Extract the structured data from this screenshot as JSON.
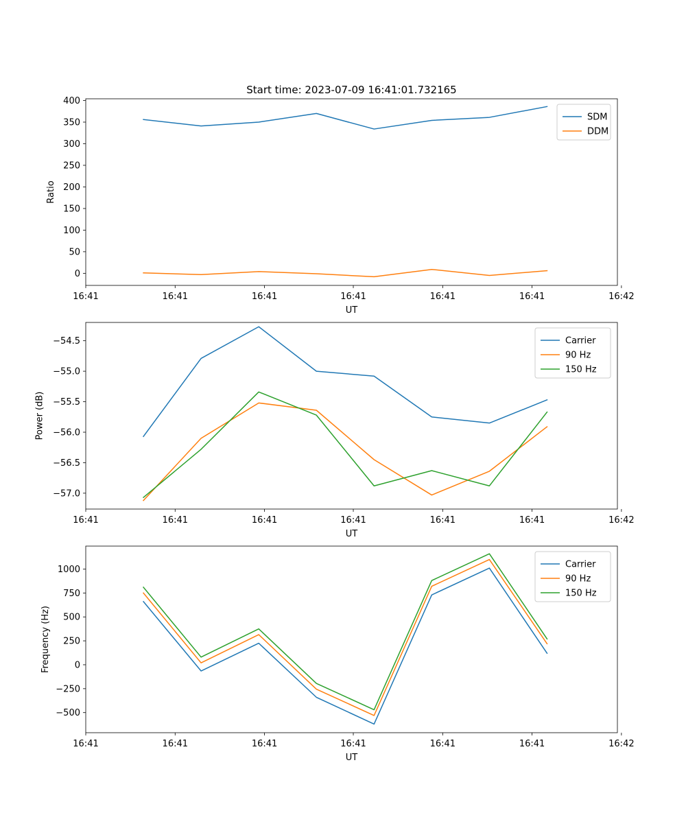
{
  "title": "Start time: 2023-07-09 16:41:01.732165",
  "chart_data": [
    {
      "type": "line",
      "title": "Start time: 2023-07-09 16:41:01.732165",
      "xlabel": "UT",
      "ylabel": "Ratio",
      "x": [
        1,
        2,
        3,
        4,
        5,
        6,
        7,
        8
      ],
      "xlim": [
        0,
        9.22
      ],
      "xticks": [
        0,
        1.55,
        3.1,
        4.64,
        6.19,
        7.74,
        9.29
      ],
      "xtick_labels": [
        "16:41",
        "16:41",
        "16:41",
        "16:41",
        "16:41",
        "16:41",
        "16:42"
      ],
      "ylim": [
        -28,
        404
      ],
      "yticks": [
        0,
        50,
        100,
        150,
        200,
        250,
        300,
        350,
        400
      ],
      "ytick_labels": [
        "0",
        "50",
        "100",
        "150",
        "200",
        "250",
        "300",
        "350",
        "400"
      ],
      "legend_location": "upper right",
      "series": [
        {
          "name": "SDM",
          "color": "#1f77b4",
          "values": [
            356,
            341,
            350,
            370,
            334,
            354,
            361,
            386
          ]
        },
        {
          "name": "DDM",
          "color": "#ff7f0e",
          "values": [
            1,
            -3,
            4,
            -1,
            -8,
            9,
            -5,
            6
          ]
        }
      ]
    },
    {
      "type": "line",
      "title": "",
      "xlabel": "UT",
      "ylabel": "Power (dB)",
      "x": [
        1,
        2,
        3,
        4,
        5,
        6,
        7,
        8
      ],
      "xlim": [
        0,
        9.22
      ],
      "xticks": [
        0,
        1.55,
        3.1,
        4.64,
        6.19,
        7.74,
        9.29
      ],
      "xtick_labels": [
        "16:41",
        "16:41",
        "16:41",
        "16:41",
        "16:41",
        "16:41",
        "16:42"
      ],
      "ylim": [
        -57.26,
        -54.2
      ],
      "yticks": [
        -57.0,
        -56.5,
        -56.0,
        -55.5,
        -55.0,
        -54.5
      ],
      "ytick_labels": [
        "−57.0",
        "−56.5",
        "−56.0",
        "−55.5",
        "−55.0",
        "−54.5"
      ],
      "legend_location": "upper right",
      "series": [
        {
          "name": "Carrier",
          "color": "#1f77b4",
          "values": [
            -56.07,
            -54.79,
            -54.27,
            -55.0,
            -55.08,
            -55.75,
            -55.85,
            -55.47
          ]
        },
        {
          "name": "90 Hz",
          "color": "#ff7f0e",
          "values": [
            -57.12,
            -56.1,
            -55.52,
            -55.64,
            -56.45,
            -57.03,
            -56.64,
            -55.91
          ]
        },
        {
          "name": "150 Hz",
          "color": "#2ca02c",
          "values": [
            -57.07,
            -56.28,
            -55.34,
            -55.72,
            -56.88,
            -56.63,
            -56.88,
            -55.67
          ]
        }
      ]
    },
    {
      "type": "line",
      "title": "",
      "xlabel": "UT",
      "ylabel": "Frequency (Hz)",
      "x": [
        1,
        2,
        3,
        4,
        5,
        6,
        7,
        8
      ],
      "xlim": [
        0,
        9.22
      ],
      "xticks": [
        0,
        1.55,
        3.1,
        4.64,
        6.19,
        7.74,
        9.29
      ],
      "xtick_labels": [
        "16:41",
        "16:41",
        "16:41",
        "16:41",
        "16:41",
        "16:41",
        "16:42"
      ],
      "ylim": [
        -710,
        1240
      ],
      "yticks": [
        -500,
        -250,
        0,
        250,
        500,
        750,
        1000
      ],
      "ytick_labels": [
        "−500",
        "−250",
        "0",
        "250",
        "500",
        "750",
        "1000"
      ],
      "legend_location": "upper right",
      "series": [
        {
          "name": "Carrier",
          "color": "#1f77b4",
          "values": [
            660,
            -65,
            225,
            -340,
            -620,
            730,
            1010,
            120
          ]
        },
        {
          "name": "90 Hz",
          "color": "#ff7f0e",
          "values": [
            750,
            20,
            315,
            -255,
            -530,
            820,
            1100,
            220
          ]
        },
        {
          "name": "150 Hz",
          "color": "#2ca02c",
          "values": [
            810,
            80,
            375,
            -195,
            -470,
            880,
            1160,
            270
          ]
        }
      ]
    }
  ]
}
